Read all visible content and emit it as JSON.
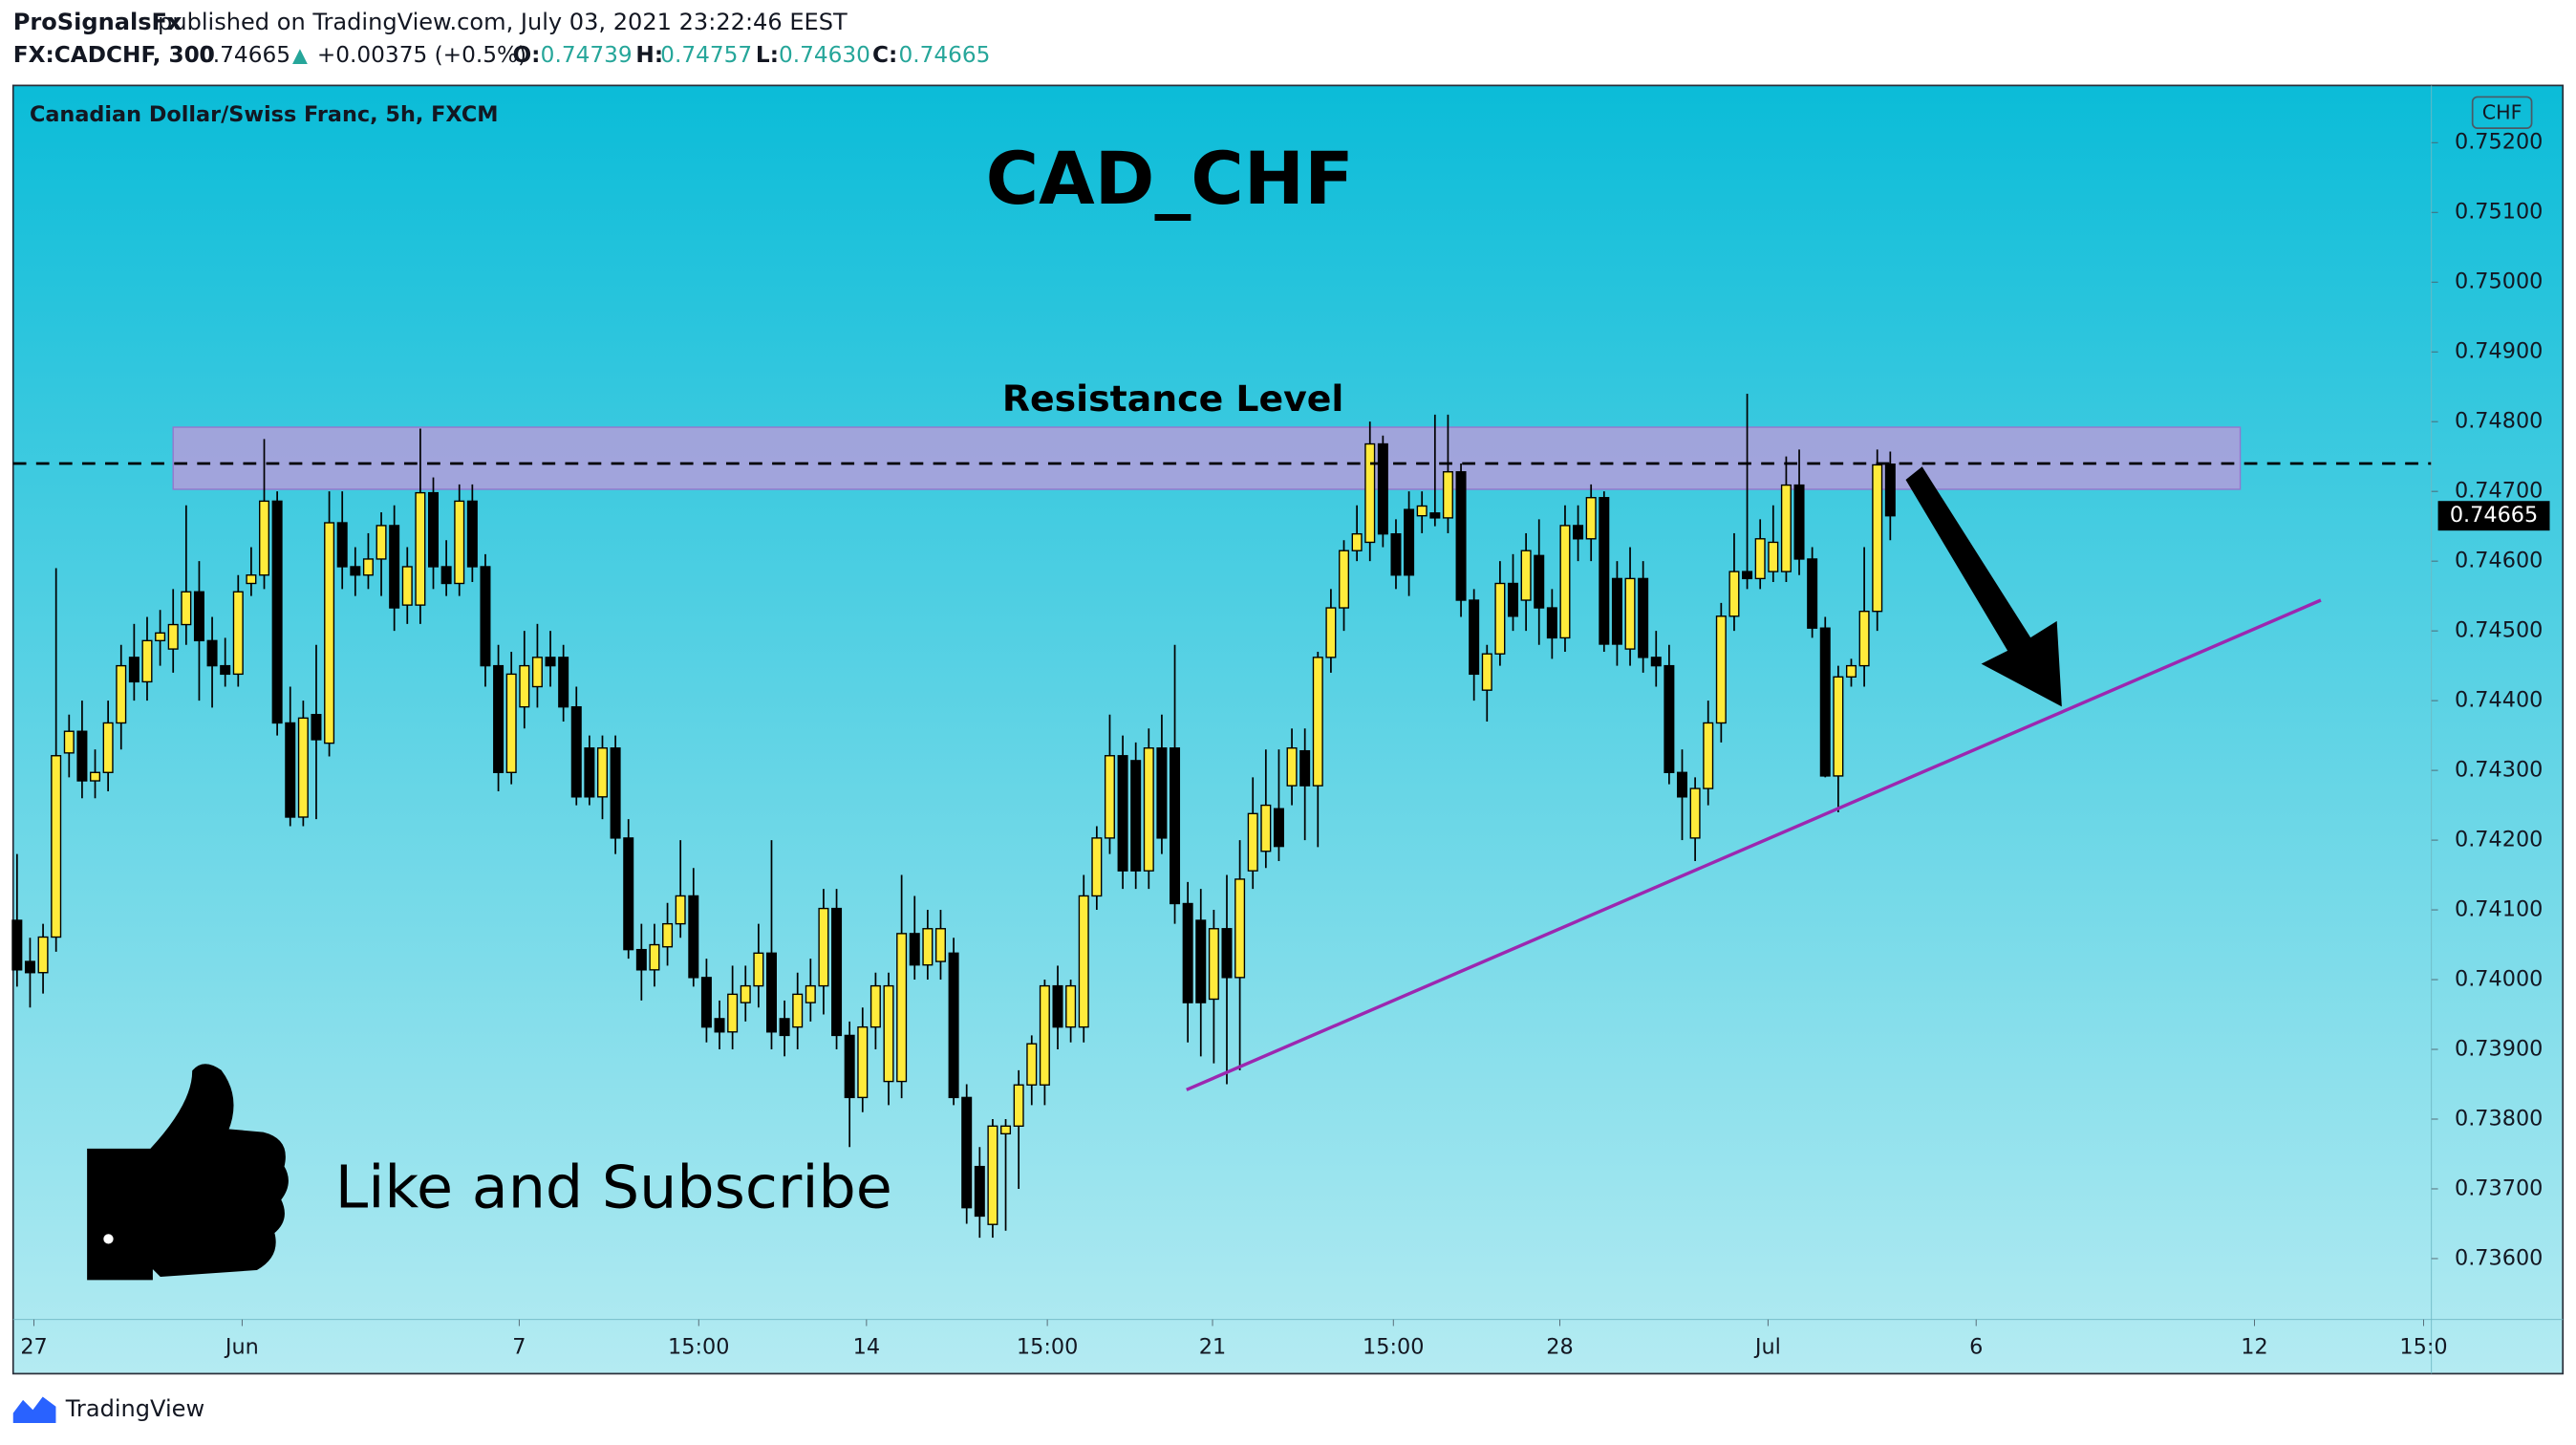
{
  "header": {
    "author": "ProSignalsFx",
    "published": "published on TradingView.com, July 03, 2021 23:22:46 EEST",
    "symbol": "FX:CADCHF, 300",
    "last": "0.74665",
    "arrow": "▲",
    "change": "+0.00375 (+0.5%)",
    "o_label": "O:",
    "o": "0.74739",
    "h_label": "H:",
    "h": "0.74757",
    "l_label": "L:",
    "l": "0.74630",
    "c_label": "C:",
    "c": "0.74665"
  },
  "footer": {
    "brand": "TradingView"
  },
  "chart_data": {
    "type": "candlestick",
    "title": "Canadian Dollar/Swiss Franc, 5h, FXCM",
    "currency": "CHF",
    "annotations": {
      "main": "CAD_CHF",
      "resistance": "Resistance Level",
      "cta": "Like and Subscribe"
    },
    "up_color": "#ffeb3b",
    "down_color": "#000000",
    "open": [
      0.74085,
      0.74026,
      0.7401,
      0.74061,
      0.74325,
      0.74356,
      0.74285,
      0.74297,
      0.74368,
      0.74462,
      0.74427,
      0.74486,
      0.74474,
      0.74509,
      0.74556,
      0.74486,
      0.7445,
      0.74438,
      0.74568,
      0.7458,
      0.74686,
      0.74368,
      0.74233,
      0.7438,
      0.74339,
      0.74655,
      0.74592,
      0.7458,
      0.74603,
      0.74651,
      0.74537,
      0.74537,
      0.74698,
      0.74592,
      0.74568,
      0.74686,
      0.74592,
      0.7445,
      0.74297,
      0.74391,
      0.7442,
      0.74462,
      0.74462,
      0.74391,
      0.74332,
      0.74262,
      0.74332,
      0.74203,
      0.74043,
      0.74014,
      0.74047,
      0.7408,
      0.7412,
      0.74003,
      0.73944,
      0.73925,
      0.73967,
      0.73991,
      0.74038,
      0.73944,
      0.73932,
      0.73967,
      0.73991,
      0.74102,
      0.7392,
      0.73831,
      0.73932,
      0.73854,
      0.73854,
      0.74066,
      0.74021,
      0.74026,
      0.74038,
      0.73831,
      0.73732,
      0.73649,
      0.73779,
      0.7379,
      0.73849,
      0.73849,
      0.73991,
      0.73932,
      0.73932,
      0.7412,
      0.74203,
      0.74321,
      0.74314,
      0.74156,
      0.74332,
      0.74332,
      0.74109,
      0.74085,
      0.73972,
      0.74073,
      0.74003,
      0.74156,
      0.74184,
      0.74245,
      0.74278,
      0.74328,
      0.74278,
      0.74462,
      0.74533,
      0.74615,
      0.74627,
      0.74768,
      0.74639,
      0.74674,
      0.74665,
      0.74669,
      0.74662,
      0.74728,
      0.74544,
      0.74415,
      0.74467,
      0.74568,
      0.74544,
      0.74608,
      0.74533,
      0.7449,
      0.74651,
      0.74632,
      0.74691,
      0.74575,
      0.74474,
      0.74575,
      0.74462,
      0.7445,
      0.74297,
      0.74203,
      0.74274,
      0.74368,
      0.74521,
      0.74585,
      0.74575,
      0.74585,
      0.74585,
      0.74709,
      0.74603,
      0.74504,
      0.74292,
      0.74434,
      0.7445,
      0.74528,
      0.74739
    ],
    "high": [
      0.7418,
      0.7406,
      0.7408,
      0.7459,
      0.7438,
      0.744,
      0.7433,
      0.744,
      0.7448,
      0.7451,
      0.7452,
      0.7453,
      0.7456,
      0.7468,
      0.746,
      0.7452,
      0.7449,
      0.7458,
      0.7462,
      0.74775,
      0.747,
      0.7442,
      0.744,
      0.7448,
      0.747,
      0.747,
      0.7462,
      0.7464,
      0.7467,
      0.7468,
      0.7462,
      0.7479,
      0.7472,
      0.7463,
      0.7471,
      0.7471,
      0.7461,
      0.7448,
      0.7447,
      0.745,
      0.7451,
      0.745,
      0.7448,
      0.7442,
      0.7435,
      0.7435,
      0.7435,
      0.7423,
      0.7408,
      0.7408,
      0.7411,
      0.742,
      0.7416,
      0.7403,
      0.7397,
      0.7402,
      0.7402,
      0.7408,
      0.742,
      0.7397,
      0.7401,
      0.7403,
      0.7413,
      0.7413,
      0.7394,
      0.7396,
      0.7401,
      0.7401,
      0.7415,
      0.7412,
      0.741,
      0.741,
      0.7406,
      0.7385,
      0.7376,
      0.738,
      0.738,
      0.7387,
      0.7392,
      0.74,
      0.7402,
      0.74,
      0.7415,
      0.7422,
      0.7438,
      0.7435,
      0.7434,
      0.7436,
      0.7438,
      0.7448,
      0.7414,
      0.7413,
      0.741,
      0.7415,
      0.742,
      0.7429,
      0.7433,
      0.7433,
      0.7436,
      0.7436,
      0.7447,
      0.7456,
      0.7463,
      0.7468,
      0.748,
      0.7478,
      0.7466,
      0.747,
      0.747,
      0.7481,
      0.7481,
      0.7474,
      0.7456,
      0.7448,
      0.746,
      0.7461,
      0.7464,
      0.7466,
      0.7456,
      0.7468,
      0.7468,
      0.7471,
      0.747,
      0.746,
      0.7462,
      0.746,
      0.745,
      0.7448,
      0.7433,
      0.7429,
      0.744,
      0.7454,
      0.7464,
      0.7484,
      0.7466,
      0.7468,
      0.7475,
      0.7476,
      0.7462,
      0.7452,
      0.7445,
      0.7446,
      0.7462,
      0.7476,
      0.74757
    ],
    "low": [
      0.7399,
      0.7396,
      0.7398,
      0.7404,
      0.7429,
      0.7426,
      0.7426,
      0.7427,
      0.7433,
      0.744,
      0.744,
      0.7445,
      0.7444,
      0.7448,
      0.744,
      0.7439,
      0.7442,
      0.7442,
      0.7455,
      0.7456,
      0.7435,
      0.7422,
      0.7422,
      0.7423,
      0.7432,
      0.7456,
      0.7455,
      0.7456,
      0.7455,
      0.745,
      0.7451,
      0.7451,
      0.7456,
      0.7455,
      0.7455,
      0.7457,
      0.7442,
      0.7427,
      0.7428,
      0.7436,
      0.7439,
      0.7442,
      0.7437,
      0.7425,
      0.7425,
      0.7423,
      0.7418,
      0.7403,
      0.7397,
      0.7399,
      0.7402,
      0.7406,
      0.7399,
      0.7391,
      0.739,
      0.739,
      0.7394,
      0.7396,
      0.739,
      0.7389,
      0.739,
      0.7394,
      0.7395,
      0.739,
      0.7376,
      0.7381,
      0.739,
      0.7382,
      0.7383,
      0.74,
      0.74,
      0.74,
      0.7382,
      0.7365,
      0.7363,
      0.7363,
      0.7364,
      0.737,
      0.7382,
      0.7382,
      0.739,
      0.7391,
      0.7391,
      0.741,
      0.7418,
      0.7413,
      0.7413,
      0.7413,
      0.7418,
      0.7408,
      0.7391,
      0.7389,
      0.7388,
      0.7385,
      0.7387,
      0.7413,
      0.7416,
      0.7417,
      0.7425,
      0.742,
      0.7419,
      0.7444,
      0.745,
      0.746,
      0.746,
      0.7462,
      0.7456,
      0.7455,
      0.7464,
      0.7465,
      0.7464,
      0.7452,
      0.744,
      0.7437,
      0.7445,
      0.745,
      0.745,
      0.7448,
      0.7446,
      0.7447,
      0.746,
      0.746,
      0.7447,
      0.7445,
      0.7445,
      0.7444,
      0.7442,
      0.7428,
      0.742,
      0.7417,
      0.7425,
      0.7434,
      0.745,
      0.7456,
      0.7456,
      0.7457,
      0.7457,
      0.7458,
      0.7449,
      0.7429,
      0.7424,
      0.7442,
      0.7442,
      0.745,
      0.7463
    ],
    "close": [
      0.74014,
      0.7401,
      0.74061,
      0.74321,
      0.74356,
      0.74285,
      0.74297,
      0.74368,
      0.7445,
      0.74427,
      0.74486,
      0.74497,
      0.74509,
      0.74556,
      0.74486,
      0.7445,
      0.74438,
      0.74556,
      0.7458,
      0.74686,
      0.74368,
      0.74233,
      0.74375,
      0.74344,
      0.74655,
      0.74592,
      0.7458,
      0.74603,
      0.74651,
      0.74533,
      0.74592,
      0.74698,
      0.74592,
      0.74568,
      0.74686,
      0.74592,
      0.7445,
      0.74297,
      0.74438,
      0.7445,
      0.74462,
      0.7445,
      0.74391,
      0.74262,
      0.74262,
      0.74332,
      0.74203,
      0.74043,
      0.74014,
      0.7405,
      0.7408,
      0.7412,
      0.74003,
      0.73932,
      0.73925,
      0.73979,
      0.73991,
      0.74038,
      0.73925,
      0.7392,
      0.73979,
      0.73991,
      0.74102,
      0.7392,
      0.73831,
      0.73932,
      0.73991,
      0.73991,
      0.74066,
      0.74021,
      0.74073,
      0.74073,
      0.73831,
      0.73673,
      0.73661,
      0.7379,
      0.7379,
      0.73849,
      0.73908,
      0.73991,
      0.73932,
      0.73991,
      0.7412,
      0.74203,
      0.74321,
      0.74156,
      0.74156,
      0.74332,
      0.74203,
      0.74109,
      0.73967,
      0.73967,
      0.74073,
      0.74003,
      0.74144,
      0.74238,
      0.7425,
      0.74191,
      0.74332,
      0.74278,
      0.74462,
      0.74533,
      0.74615,
      0.74639,
      0.74768,
      0.74639,
      0.7458,
      0.7458,
      0.74679,
      0.74662,
      0.74728,
      0.74544,
      0.74438,
      0.74467,
      0.74568,
      0.74521,
      0.74615,
      0.74533,
      0.7449,
      0.74651,
      0.74632,
      0.74691,
      0.74481,
      0.74481,
      0.74575,
      0.74462,
      0.7445,
      0.74297,
      0.74262,
      0.74274,
      0.74368,
      0.74521,
      0.74585,
      0.74575,
      0.74632,
      0.74627,
      0.74709,
      0.74603,
      0.74504,
      0.74292,
      0.74434,
      0.7445,
      0.74528,
      0.74738,
      0.74665
    ],
    "xlim": [
      -0.3,
      185.6
    ],
    "xticks": [
      {
        "value": 1.3,
        "label": "27"
      },
      {
        "value": 17.3,
        "label": "Jun"
      },
      {
        "value": 38.6,
        "label": "7"
      },
      {
        "value": 52.4,
        "label": "15:00"
      },
      {
        "value": 65.3,
        "label": "14"
      },
      {
        "value": 79.2,
        "label": "15:00"
      },
      {
        "value": 91.9,
        "label": "21"
      },
      {
        "value": 105.8,
        "label": "15:00"
      },
      {
        "value": 118.6,
        "label": "28"
      },
      {
        "value": 134.6,
        "label": "Jul"
      },
      {
        "value": 150.6,
        "label": "6"
      },
      {
        "value": 172.0,
        "label": "12"
      },
      {
        "value": 185.0,
        "label": "15:0"
      }
    ],
    "ylim": [
      0.73435,
      0.75282
    ],
    "yticks": [
      {
        "value": 0.736,
        "label": "0.73600"
      },
      {
        "value": 0.737,
        "label": "0.73700"
      },
      {
        "value": 0.738,
        "label": "0.73800"
      },
      {
        "value": 0.739,
        "label": "0.73900"
      },
      {
        "value": 0.74,
        "label": "0.74000"
      },
      {
        "value": 0.741,
        "label": "0.74100"
      },
      {
        "value": 0.742,
        "label": "0.74200"
      },
      {
        "value": 0.743,
        "label": "0.74300"
      },
      {
        "value": 0.744,
        "label": "0.74400"
      },
      {
        "value": 0.745,
        "label": "0.74500"
      },
      {
        "value": 0.746,
        "label": "0.74600"
      },
      {
        "value": 0.747,
        "label": "0.74700"
      },
      {
        "value": 0.748,
        "label": "0.74800"
      },
      {
        "value": 0.749,
        "label": "0.74900"
      },
      {
        "value": 0.75,
        "label": "0.75000"
      },
      {
        "value": 0.751,
        "label": "0.75100"
      },
      {
        "value": 0.752,
        "label": "0.75200"
      }
    ],
    "resistance_zone": {
      "x": [
        12.0,
        170.9
      ],
      "y": [
        0.74703,
        0.74792
      ],
      "color": "#b39ddb"
    },
    "dashed_level": 0.7474,
    "trendline": {
      "x": [
        89.9,
        177.1
      ],
      "y": [
        0.73842,
        0.74544
      ],
      "color": "#9c27b0"
    }
  }
}
